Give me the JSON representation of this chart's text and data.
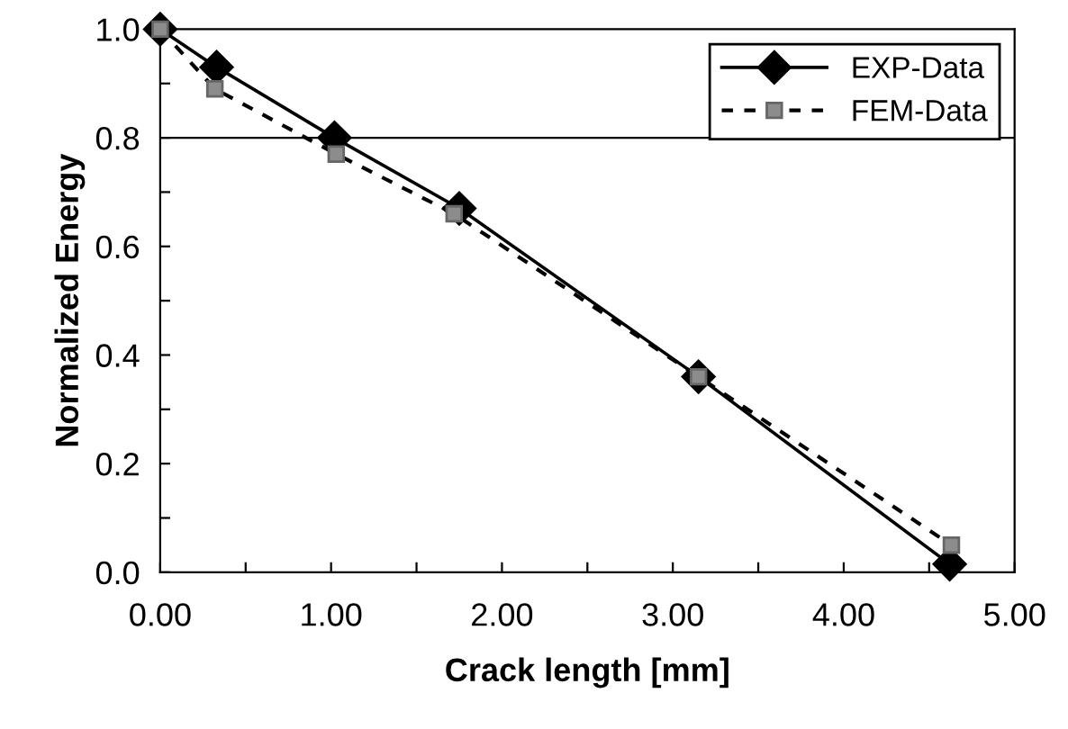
{
  "chart_data": {
    "type": "line",
    "xlabel": "Crack length [mm]",
    "ylabel": "Normalized Energy",
    "xlim": [
      0,
      5
    ],
    "ylim": [
      0,
      1
    ],
    "xticks": [
      {
        "value": 0,
        "label": "0.00"
      },
      {
        "value": 0.5,
        "label": null
      },
      {
        "value": 1,
        "label": "1.00"
      },
      {
        "value": 1.5,
        "label": null
      },
      {
        "value": 2,
        "label": "2.00"
      },
      {
        "value": 2.5,
        "label": null
      },
      {
        "value": 3,
        "label": "3.00"
      },
      {
        "value": 3.5,
        "label": null
      },
      {
        "value": 4,
        "label": "4.00"
      },
      {
        "value": 4.5,
        "label": null
      },
      {
        "value": 5,
        "label": "5.00"
      }
    ],
    "yticks": [
      {
        "value": 0,
        "label": "0.0"
      },
      {
        "value": 0.1,
        "label": null
      },
      {
        "value": 0.2,
        "label": "0.2"
      },
      {
        "value": 0.3,
        "label": null
      },
      {
        "value": 0.4,
        "label": "0.4"
      },
      {
        "value": 0.5,
        "label": null
      },
      {
        "value": 0.6,
        "label": "0.6"
      },
      {
        "value": 0.7,
        "label": null
      },
      {
        "value": 0.8,
        "label": "0.8"
      },
      {
        "value": 0.9,
        "label": null
      },
      {
        "value": 1,
        "label": "1.0"
      }
    ],
    "ref_lines": [
      {
        "axis": "y",
        "value": 0.8,
        "color": "#000000"
      }
    ],
    "grid": false,
    "legend": "top right",
    "series": [
      {
        "name": "EXP-Data",
        "color": "#000000",
        "marker": "diamond",
        "line_style": "solid",
        "x": [
          0,
          0.33,
          1.02,
          1.75,
          3.15,
          4.62
        ],
        "values": [
          1.0,
          0.93,
          0.8,
          0.67,
          0.36,
          0.015
        ]
      },
      {
        "name": "FEM-Data",
        "color": "#8c8c8c",
        "marker": "square",
        "line_style": "dashed",
        "x": [
          0,
          0.32,
          1.03,
          1.72,
          3.15,
          4.63
        ],
        "values": [
          1.0,
          0.89,
          0.77,
          0.66,
          0.36,
          0.05
        ]
      }
    ]
  }
}
